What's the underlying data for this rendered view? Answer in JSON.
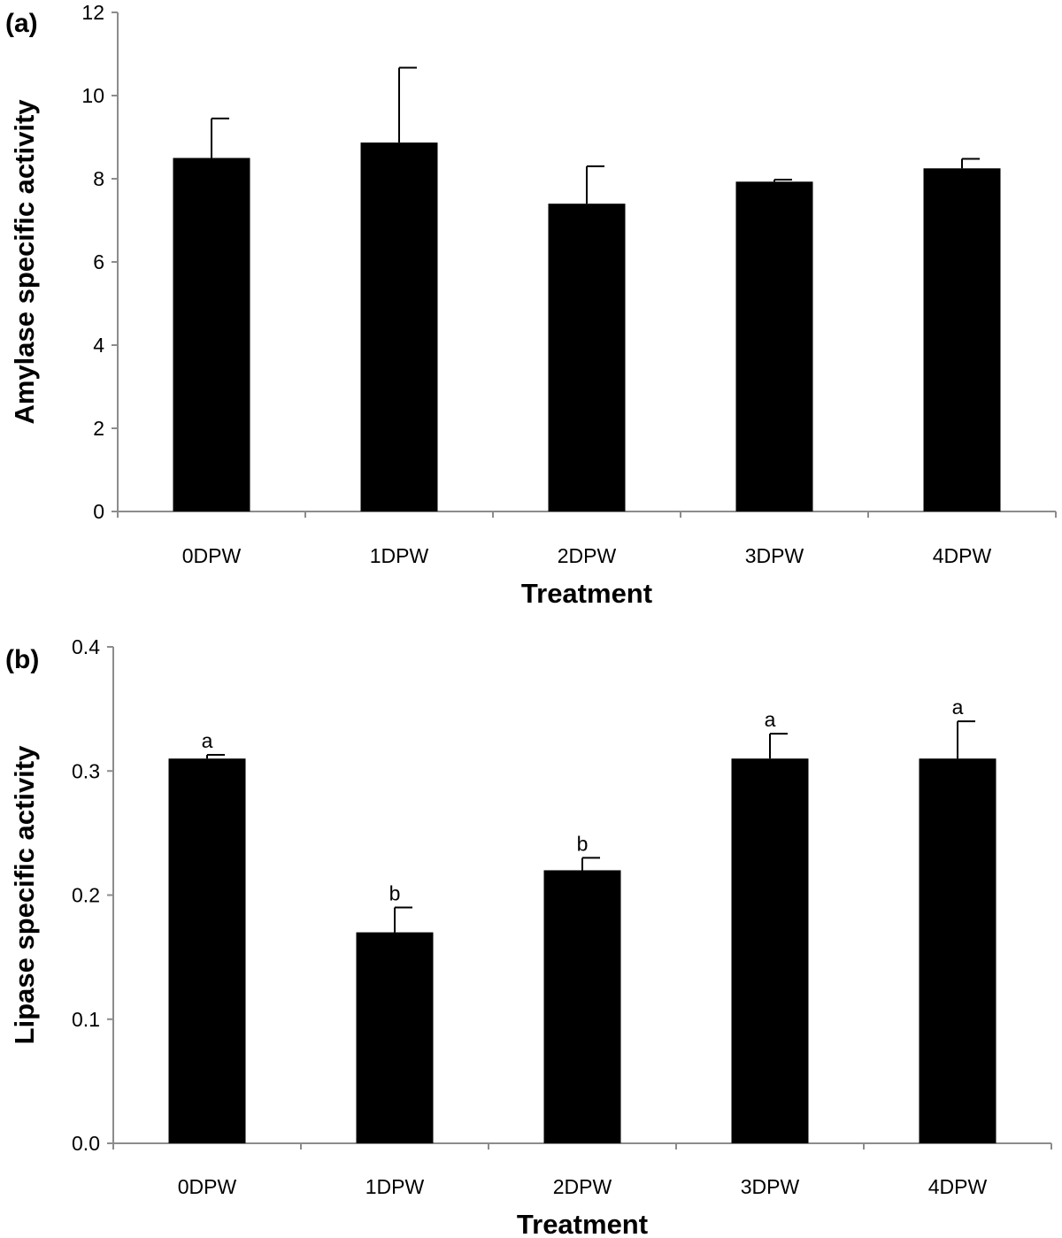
{
  "chart_data": [
    {
      "type": "bar",
      "panel_label": "(a)",
      "title": "",
      "xlabel": "Treatment",
      "ylabel": "Amylase specific activity",
      "categories": [
        "0DPW",
        "1DPW",
        "2DPW",
        "3DPW",
        "4DPW"
      ],
      "values": [
        8.5,
        8.87,
        7.4,
        7.93,
        8.25
      ],
      "errors": [
        0.95,
        1.8,
        0.9,
        0.05,
        0.23
      ],
      "significance": [
        "",
        "",
        "",
        "",
        ""
      ],
      "ylim": [
        0,
        12
      ],
      "yticks": [
        0,
        2,
        4,
        6,
        8,
        10,
        12
      ],
      "ytick_labels": [
        "0",
        "2",
        "4",
        "6",
        "8",
        "10",
        "12"
      ],
      "grid": false,
      "bar_color": "#000000",
      "axis_color": "#8c8c8c"
    },
    {
      "type": "bar",
      "panel_label": "(b)",
      "title": "",
      "xlabel": "Treatment",
      "ylabel": "Lipase specific activity",
      "categories": [
        "0DPW",
        "1DPW",
        "2DPW",
        "3DPW",
        "4DPW"
      ],
      "values": [
        0.31,
        0.17,
        0.22,
        0.31,
        0.31
      ],
      "errors": [
        0.003,
        0.02,
        0.01,
        0.02,
        0.03
      ],
      "significance": [
        "a",
        "b",
        "b",
        "a",
        "a"
      ],
      "ylim": [
        0,
        0.4
      ],
      "yticks": [
        0,
        0.1,
        0.2,
        0.3,
        0.4
      ],
      "ytick_labels": [
        "0.0",
        "0.1",
        "0.2",
        "0.3",
        "0.4"
      ],
      "grid": false,
      "bar_color": "#000000",
      "axis_color": "#8c8c8c"
    }
  ]
}
